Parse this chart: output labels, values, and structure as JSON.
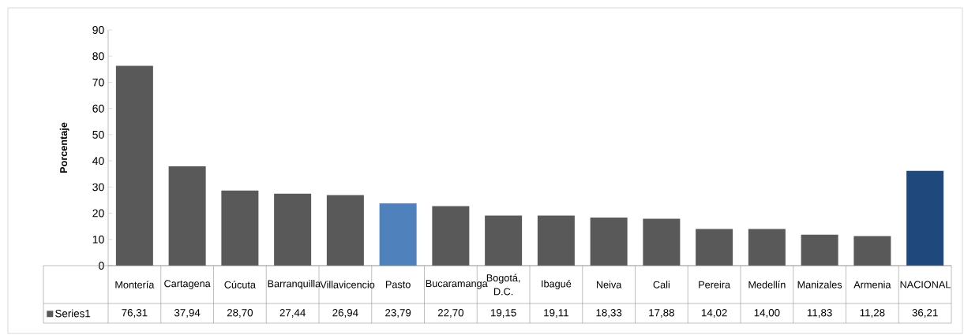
{
  "chart_data": {
    "type": "bar",
    "ylabel": "Porcentaje",
    "categories": [
      "Montería",
      "Cartagena",
      "Cúcuta",
      "Barranquilla",
      "Villavicencio",
      "Pasto",
      "Bucaramanga",
      "Bogotá, D.C.",
      "Ibagué",
      "Neiva",
      "Cali",
      "Pereira",
      "Medellín",
      "Manizales",
      "Armenia",
      "NACIONAL"
    ],
    "series": [
      {
        "name": "Series1",
        "color": "#595959",
        "values": [
          76.31,
          37.94,
          28.7,
          27.44,
          26.94,
          23.79,
          22.7,
          19.15,
          19.11,
          18.33,
          17.88,
          14.02,
          14.0,
          11.83,
          11.28,
          36.21
        ],
        "colors": [
          "#595959",
          "#595959",
          "#595959",
          "#595959",
          "#595959",
          "#4f81bd",
          "#595959",
          "#595959",
          "#595959",
          "#595959",
          "#595959",
          "#595959",
          "#595959",
          "#595959",
          "#595959",
          "#1f497d"
        ],
        "value_labels": [
          "76,31",
          "37,94",
          "28,70",
          "27,44",
          "26,94",
          "23,79",
          "22,70",
          "19,15",
          "19,11",
          "18,33",
          "17,88",
          "14,02",
          "14,00",
          "11,83",
          "11,28",
          "36,21"
        ]
      }
    ],
    "ylim": [
      0,
      90
    ],
    "yticks": [
      0,
      10,
      20,
      30,
      40,
      50,
      60,
      70,
      80,
      90
    ],
    "grid": false,
    "legend": "bottom"
  }
}
